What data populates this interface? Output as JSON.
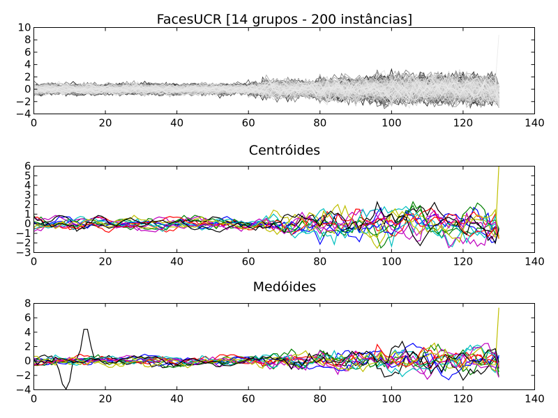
{
  "chart_data": [
    {
      "type": "line",
      "title": "FacesUCR [14 grupos - 200 instâncias]",
      "xlabel": "",
      "ylabel": "",
      "xlim": [
        0,
        140
      ],
      "ylim": [
        -4,
        10
      ],
      "xticks": [
        0,
        20,
        40,
        60,
        80,
        100,
        120,
        140
      ],
      "yticks": [
        -4,
        -2,
        0,
        2,
        4,
        6,
        8,
        10
      ],
      "xtick_labels": [
        "0",
        "20",
        "40",
        "60",
        "80",
        "100",
        "120",
        "140"
      ],
      "ytick_labels": [
        "−4",
        "−2",
        "0",
        "2",
        "4",
        "6",
        "8",
        "10"
      ],
      "series_length": 131,
      "series_count": 200,
      "final_peak": 8.8,
      "color_scheme": "grayscale",
      "grid": false,
      "legend": "none"
    },
    {
      "type": "line",
      "title": "Centróides",
      "xlabel": "",
      "ylabel": "",
      "xlim": [
        0,
        140
      ],
      "ylim": [
        -3,
        6
      ],
      "xticks": [
        0,
        20,
        40,
        60,
        80,
        100,
        120,
        140
      ],
      "yticks": [
        -3,
        -2,
        -1,
        0,
        1,
        2,
        3,
        4,
        5,
        6
      ],
      "xtick_labels": [
        "0",
        "20",
        "40",
        "60",
        "80",
        "100",
        "120",
        "140"
      ],
      "ytick_labels": [
        "−3",
        "−2",
        "−1",
        "0",
        "1",
        "2",
        "3",
        "4",
        "5",
        "6"
      ],
      "series_length": 131,
      "series_count": 14,
      "final_peak": 6.0,
      "colors": [
        "#0000ff",
        "#008000",
        "#ff0000",
        "#00bfbf",
        "#bf00bf",
        "#bfbf00",
        "#000000",
        "#0000ff",
        "#008000",
        "#ff0000",
        "#00bfbf",
        "#bf00bf",
        "#bfbf00",
        "#000000"
      ],
      "grid": false,
      "legend": "none"
    },
    {
      "type": "line",
      "title": "Medóides",
      "xlabel": "",
      "ylabel": "",
      "xlim": [
        0,
        140
      ],
      "ylim": [
        -4,
        8
      ],
      "xticks": [
        0,
        20,
        40,
        60,
        80,
        100,
        120,
        140
      ],
      "yticks": [
        -4,
        -2,
        0,
        2,
        4,
        6,
        8
      ],
      "xtick_labels": [
        "0",
        "20",
        "40",
        "60",
        "80",
        "100",
        "120",
        "140"
      ],
      "ytick_labels": [
        "−4",
        "−2",
        "0",
        "2",
        "4",
        "6",
        "8"
      ],
      "series_length": 131,
      "series_count": 14,
      "final_peak": 7.4,
      "colors": [
        "#0000ff",
        "#008000",
        "#ff0000",
        "#00bfbf",
        "#bf00bf",
        "#bfbf00",
        "#000000",
        "#0000ff",
        "#008000",
        "#ff0000",
        "#00bfbf",
        "#bf00bf",
        "#bfbf00",
        "#000000"
      ],
      "grid": false,
      "legend": "none"
    }
  ]
}
